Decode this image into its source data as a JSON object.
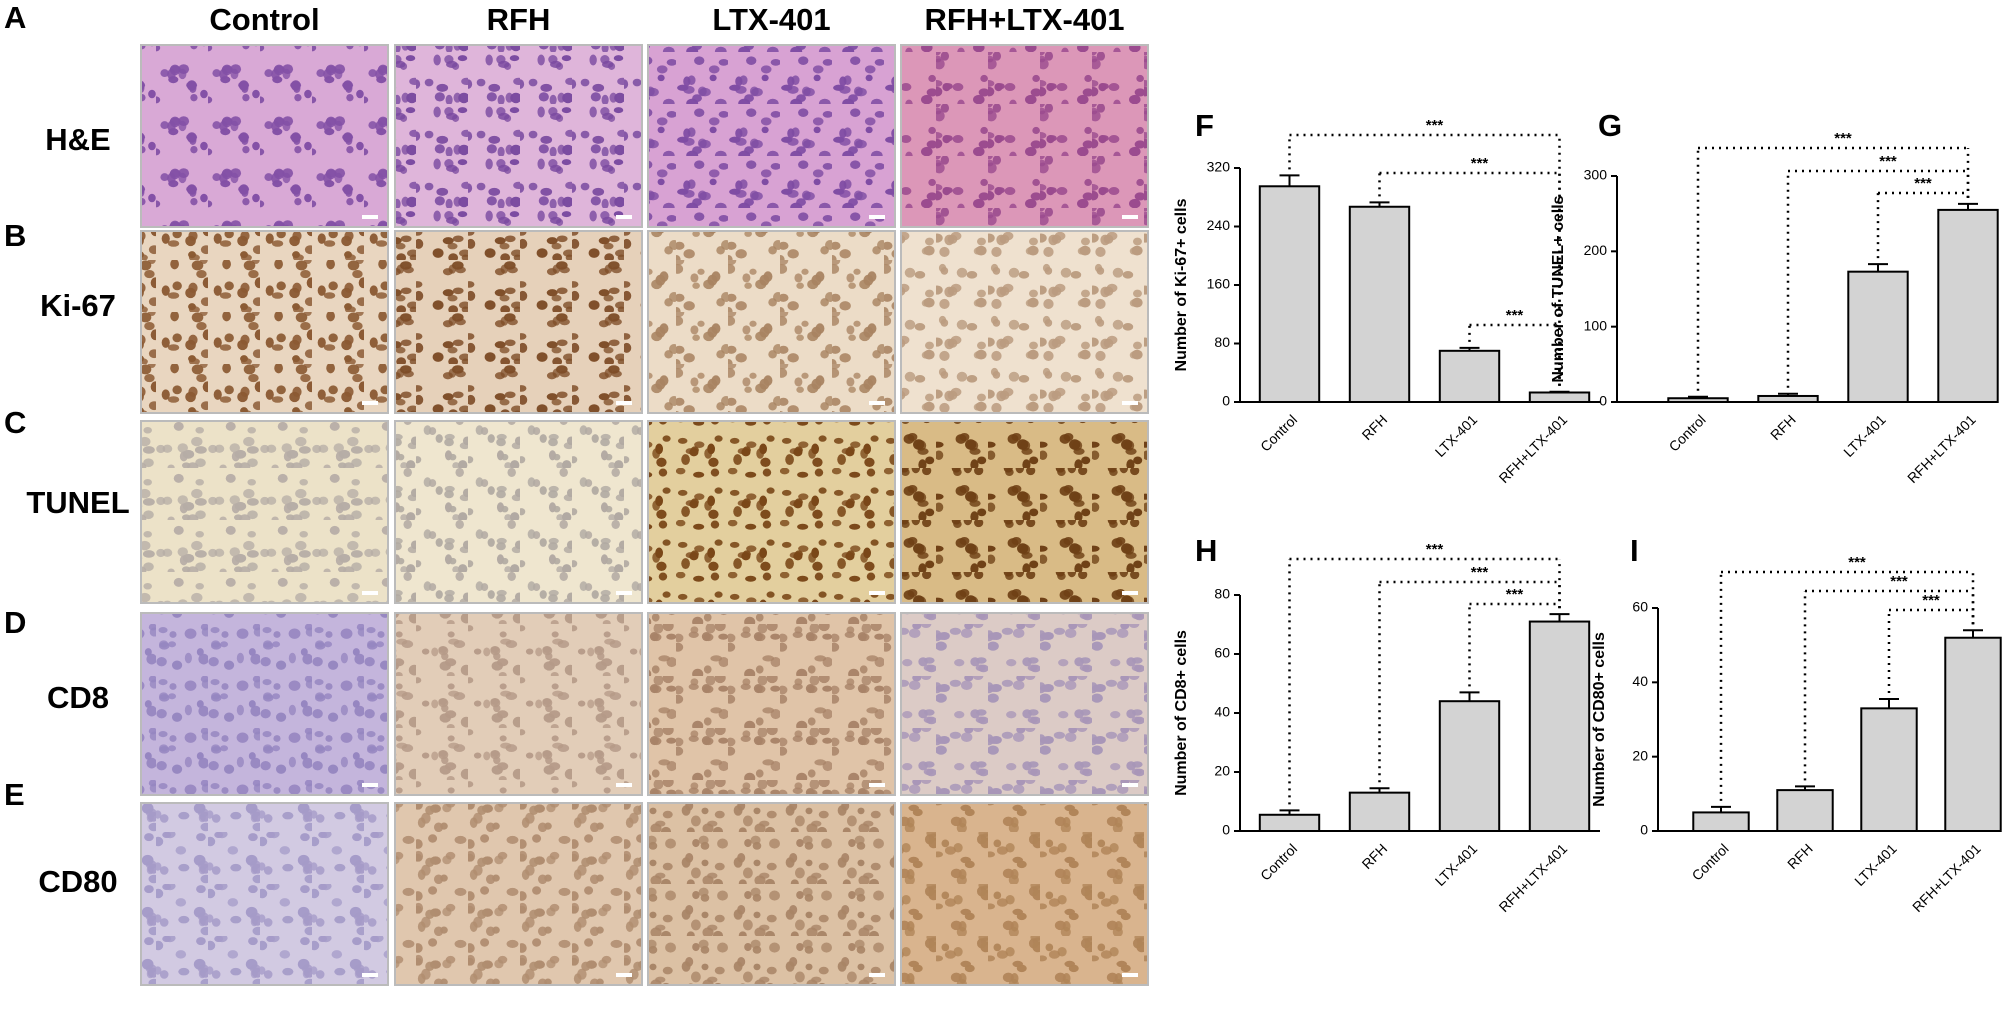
{
  "figure": {
    "panel_letters": [
      "A",
      "B",
      "C",
      "D",
      "E"
    ],
    "column_headers": [
      "Control",
      "RFH",
      "LTX-401",
      "RFH+LTX-401"
    ],
    "row_labels": [
      "H&E",
      "Ki-67",
      "TUNEL",
      "CD8",
      "CD80"
    ]
  },
  "chart_data": [
    {
      "type": "bar",
      "panel": "F",
      "ylabel": "Number of Ki-67+ cells",
      "categories": [
        "Control",
        "RFH",
        "LTX-401",
        "RFH+LTX-401"
      ],
      "values": [
        295,
        267,
        70,
        13
      ],
      "errors": [
        15,
        6,
        4,
        1
      ],
      "color": "#d3d3d3",
      "ylim": [
        0,
        320
      ],
      "yticks": [
        0,
        80,
        160,
        240,
        320
      ],
      "annotations": [
        "***",
        "***",
        "***"
      ]
    },
    {
      "type": "bar",
      "panel": "G",
      "ylabel": "Number of TUNEL+ cells",
      "categories": [
        "Control",
        "RFH",
        "LTX-401",
        "RFH+LTX-401"
      ],
      "values": [
        5,
        8,
        173,
        255
      ],
      "errors": [
        2,
        3,
        10,
        8
      ],
      "color": "#d3d3d3",
      "ylim": [
        0,
        300
      ],
      "yticks": [
        0,
        100,
        200,
        300
      ],
      "annotations": [
        "***",
        "***",
        "***"
      ]
    },
    {
      "type": "bar",
      "panel": "H",
      "ylabel": "Number of CD8+ cells",
      "categories": [
        "Control",
        "RFH",
        "LTX-401",
        "RFH+LTX-401"
      ],
      "values": [
        5.5,
        13,
        44,
        71
      ],
      "errors": [
        1.5,
        1.5,
        3,
        2.5
      ],
      "color": "#d3d3d3",
      "ylim": [
        0,
        80
      ],
      "yticks": [
        0,
        20,
        40,
        60,
        80
      ],
      "annotations": [
        "***",
        "***",
        "***"
      ]
    },
    {
      "type": "bar",
      "panel": "I",
      "ylabel": "Number of CD80+ cells",
      "categories": [
        "Control",
        "RFH",
        "LTX-401",
        "RFH+LTX-401"
      ],
      "values": [
        5,
        11,
        33,
        52
      ],
      "errors": [
        1.5,
        1,
        2.5,
        2
      ],
      "color": "#d3d3d3",
      "ylim": [
        0,
        60
      ],
      "yticks": [
        0,
        20,
        40,
        60
      ],
      "annotations": [
        "***",
        "***",
        "***"
      ]
    }
  ]
}
